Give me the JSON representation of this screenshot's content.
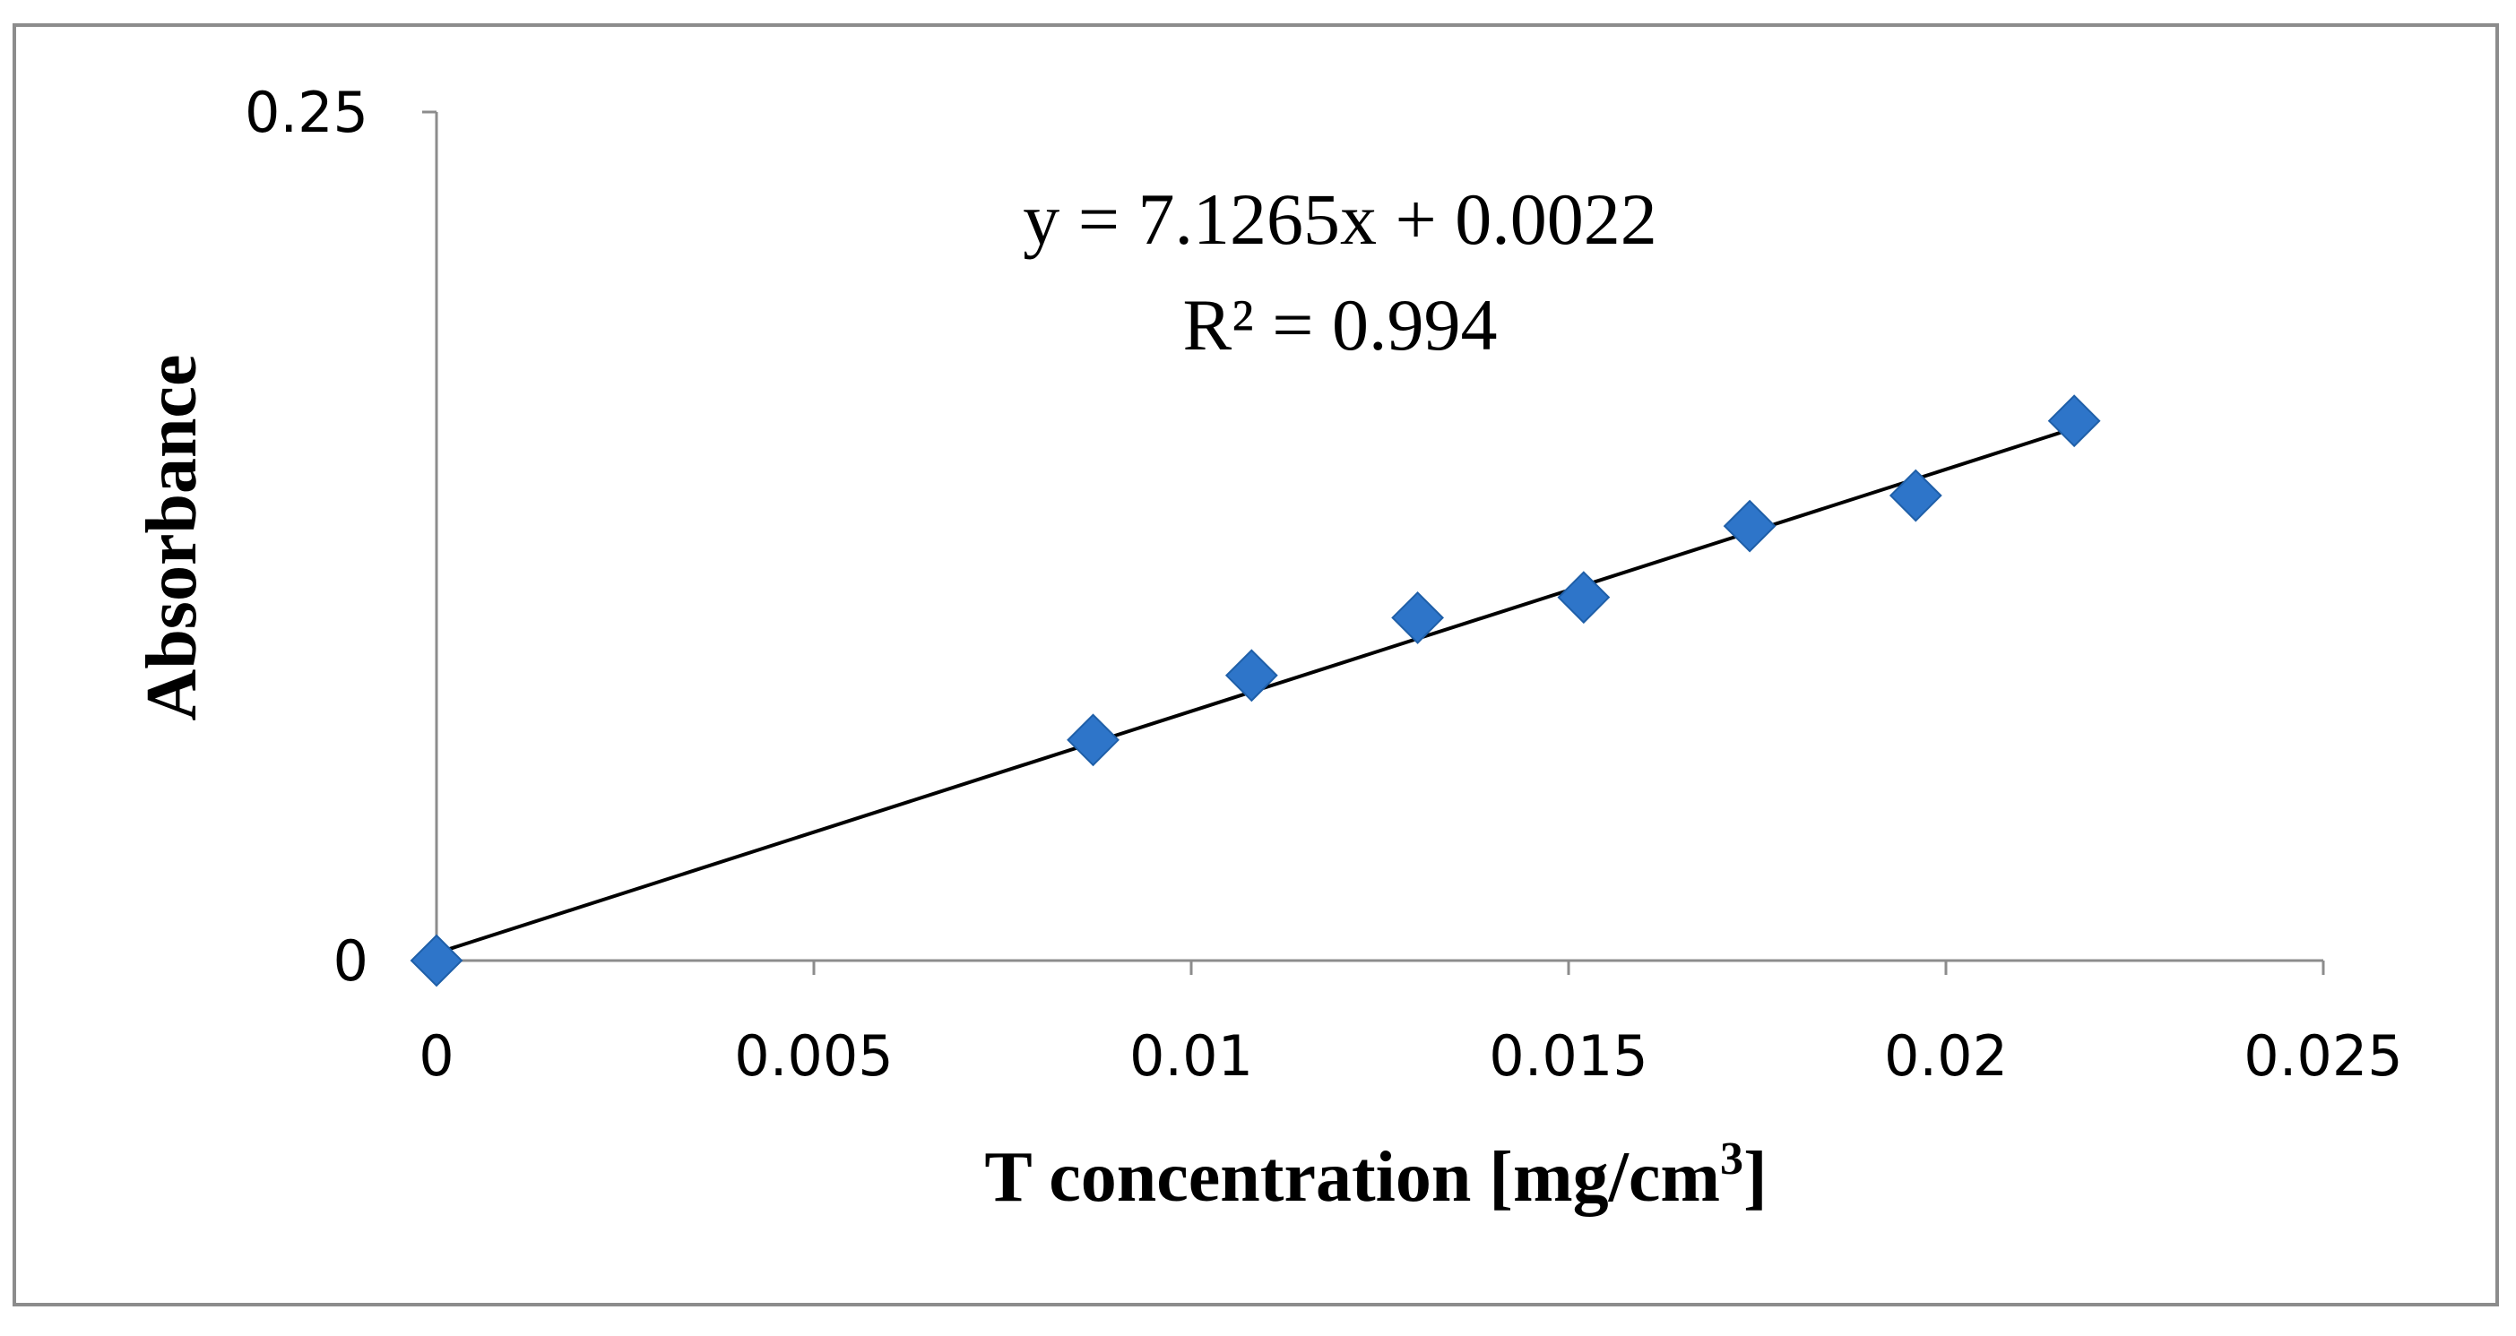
{
  "chart_data": {
    "type": "scatter",
    "title": "",
    "xlabel": "T concentration [mg/cm",
    "xlabel_sup": "3",
    "xlabel_end": "]",
    "ylabel": "Absorbance",
    "xlim": [
      0,
      0.025
    ],
    "ylim": [
      0,
      0.25
    ],
    "x_ticks": [
      0,
      0.005,
      0.01,
      0.015,
      0.02,
      0.025
    ],
    "x_tick_labels": [
      "0",
      "0.005",
      "0.01",
      "0.015",
      "0.02",
      "0.025"
    ],
    "y_ticks": [
      0,
      0.25
    ],
    "y_tick_labels": [
      "0",
      "0.25"
    ],
    "grid": false,
    "series": [
      {
        "name": "Absorbance",
        "x": [
          0,
          0.0087,
          0.0108,
          0.013,
          0.0152,
          0.0174,
          0.0196,
          0.0217
        ],
        "y": [
          0,
          0.065,
          0.084,
          0.101,
          0.107,
          0.128,
          0.137,
          0.159
        ],
        "marker": "diamond",
        "color": "#2E75C9"
      }
    ],
    "trendline": {
      "slope": 7.1265,
      "intercept": 0.0022,
      "x_range": [
        0,
        0.0217
      ],
      "color": "#000000"
    },
    "annotations": {
      "equation": "y = 7.1265x + 0.0022",
      "r_squared": "R² = 0.994"
    }
  }
}
